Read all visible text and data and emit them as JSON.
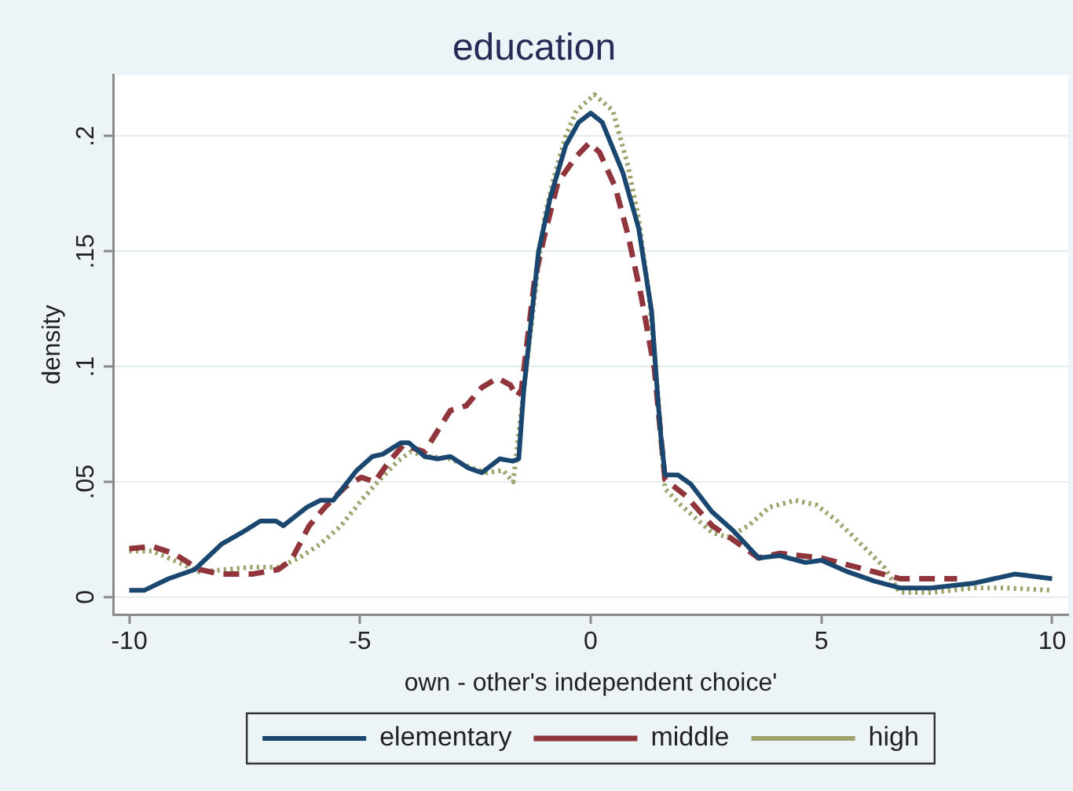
{
  "chart_data": {
    "type": "line",
    "title": "education",
    "xlabel": "own - other's independent choice'",
    "ylabel": "density",
    "xlim": [
      -10.35,
      10.35
    ],
    "ylim": [
      -0.0075,
      0.2265
    ],
    "xticks": [
      -10,
      -5,
      0,
      5,
      10
    ],
    "yticks": [
      0,
      {
        "value": 0.05,
        "label": ".05"
      },
      {
        "value": 0.1,
        "label": ".1"
      },
      {
        "value": 0.15,
        "label": ".15"
      },
      {
        "value": 0.2,
        "label": ".2"
      }
    ],
    "grid": "y",
    "legend": "bottom",
    "marker": "none",
    "series": [
      {
        "name": "elementary",
        "color": "#1a476f",
        "line_style": "solid",
        "x": [
          -10,
          -9.67,
          -9.15,
          -8.58,
          -8.0,
          -7.56,
          -7.16,
          -6.82,
          -6.66,
          -6.15,
          -5.86,
          -5.58,
          -5.07,
          -4.73,
          -4.51,
          -4.11,
          -3.94,
          -3.6,
          -3.32,
          -3.04,
          -2.65,
          -2.36,
          -1.97,
          -1.69,
          -1.56,
          -1.45,
          -1.13,
          -0.88,
          -0.54,
          -0.26,
          0,
          0.25,
          0.7,
          1.04,
          1.32,
          1.44,
          1.52,
          1.61,
          1.89,
          2.17,
          2.63,
          3.08,
          3.64,
          4.1,
          4.66,
          5.0,
          5.57,
          6.14,
          6.7,
          7.38,
          8.29,
          8.74,
          9.19,
          10.0
        ],
        "values": [
          0.003,
          0.003,
          0.008,
          0.012,
          0.023,
          0.028,
          0.033,
          0.033,
          0.031,
          0.039,
          0.042,
          0.042,
          0.055,
          0.061,
          0.062,
          0.067,
          0.067,
          0.061,
          0.06,
          0.061,
          0.056,
          0.054,
          0.06,
          0.059,
          0.06,
          0.09,
          0.15,
          0.173,
          0.196,
          0.206,
          0.21,
          0.206,
          0.184,
          0.16,
          0.124,
          0.09,
          0.07,
          0.053,
          0.053,
          0.049,
          0.037,
          0.029,
          0.017,
          0.018,
          0.015,
          0.016,
          0.011,
          0.007,
          0.004,
          0.004,
          0.006,
          0.008,
          0.01,
          0.008
        ]
      },
      {
        "name": "middle",
        "color": "#90353b",
        "line_style": "dashed",
        "x": [
          -10,
          -9.5,
          -9.04,
          -8.48,
          -8.02,
          -7.34,
          -6.77,
          -6.49,
          -6.1,
          -5.76,
          -5.31,
          -4.97,
          -4.68,
          -4.4,
          -4.06,
          -3.6,
          -3.26,
          -3.04,
          -2.7,
          -2.36,
          -2.02,
          -1.74,
          -1.6,
          -1.5,
          -1.22,
          -1.0,
          -0.71,
          -0.32,
          -0.03,
          0.19,
          0.53,
          0.81,
          1.1,
          1.38,
          1.61,
          2.06,
          2.63,
          3.08,
          3.64,
          4.1,
          5.0,
          5.57,
          6.14,
          6.7,
          7.38,
          7.94
        ],
        "values": [
          0.021,
          0.022,
          0.019,
          0.012,
          0.01,
          0.01,
          0.012,
          0.016,
          0.031,
          0.039,
          0.048,
          0.052,
          0.05,
          0.058,
          0.066,
          0.063,
          0.074,
          0.081,
          0.083,
          0.091,
          0.095,
          0.092,
          0.087,
          0.09,
          0.137,
          0.157,
          0.18,
          0.191,
          0.197,
          0.193,
          0.178,
          0.157,
          0.13,
          0.099,
          0.051,
          0.044,
          0.031,
          0.025,
          0.017,
          0.019,
          0.017,
          0.014,
          0.011,
          0.008,
          0.008,
          0.008
        ]
      },
      {
        "name": "high",
        "color": "#9da36b",
        "line_style": "dotted",
        "x": [
          -10,
          -9.5,
          -9.04,
          -8.48,
          -7.9,
          -7.34,
          -6.77,
          -6.32,
          -5.86,
          -5.41,
          -4.97,
          -4.57,
          -4.18,
          -3.9,
          -3.5,
          -3.04,
          -2.58,
          -2.24,
          -1.9,
          -1.68,
          -1.45,
          -1.1,
          -1.0,
          -0.77,
          -0.54,
          -0.31,
          0.08,
          0.48,
          0.81,
          1.04,
          1.27,
          1.44,
          1.61,
          1.95,
          2.63,
          2.97,
          3.42,
          3.87,
          4.43,
          4.89,
          5.34,
          5.91,
          6.36,
          6.7,
          7.38,
          8.29,
          8.96,
          10.0
        ],
        "values": [
          0.02,
          0.02,
          0.016,
          0.011,
          0.012,
          0.013,
          0.013,
          0.017,
          0.023,
          0.031,
          0.042,
          0.051,
          0.059,
          0.063,
          0.061,
          0.06,
          0.056,
          0.054,
          0.055,
          0.05,
          0.09,
          0.15,
          0.165,
          0.184,
          0.2,
          0.211,
          0.218,
          0.211,
          0.187,
          0.164,
          0.13,
          0.092,
          0.047,
          0.04,
          0.028,
          0.026,
          0.031,
          0.039,
          0.042,
          0.04,
          0.033,
          0.022,
          0.013,
          0.002,
          0.002,
          0.004,
          0.004,
          0.003
        ]
      }
    ]
  }
}
